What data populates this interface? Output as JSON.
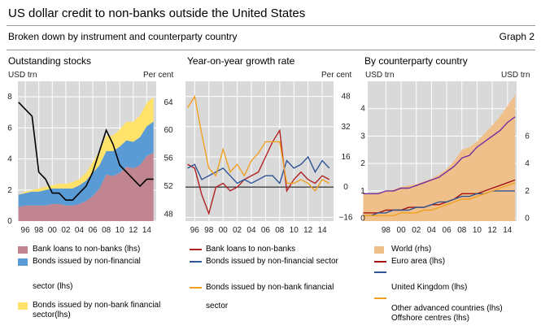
{
  "header": {
    "title": "US dollar credit to non-banks outside the United States",
    "subtitle": "Broken down by instrument and counterparty country",
    "graph_no": "Graph 2"
  },
  "panels": [
    {
      "title": "Outstanding stocks",
      "left_unit": "USD trn",
      "right_unit": "Per cent"
    },
    {
      "title": "Year-on-year growth rate",
      "left_unit": "",
      "right_unit": "Per cent"
    },
    {
      "title": "By counterparty country",
      "left_unit": "USD trn",
      "right_unit": "USD trn"
    }
  ],
  "legends": {
    "p1": [
      "Bank loans to non-banks (lhs)",
      "Bonds issued by non-financial",
      "sector (lhs)",
      "Bonds issued by non-bank financial",
      "sector(lhs)"
    ],
    "p2": [
      "Bank loans to non-banks",
      "Bonds issued by non-financial sector",
      "Bonds issued by non-bank financial",
      "sector"
    ],
    "p3": [
      "World (rhs)",
      "Euro area (lhs)",
      "United Kingdom (lhs)",
      "Other advanced countries (lhs)",
      "Offshore centres (lhs)"
    ]
  },
  "colors": {
    "bank_loans_fill": "#c08590",
    "bonds_nonfin_fill": "#5b9bd5",
    "bonds_nbfi_fill": "#ffe26a",
    "plot_bg": "#d9d9d9",
    "black_line": "#000000",
    "red_line": "#b22222",
    "blue_line": "#2f5597",
    "orange_line": "#f0a020",
    "world_fill": "#f0c08a",
    "euro_line": "#a01010",
    "uk_line": "#2f5597",
    "other_adv_line": "#f0a020",
    "offshore_line": "#7030a0"
  },
  "chart_data": [
    {
      "type": "area",
      "title": "Outstanding stocks",
      "x": [
        1995,
        1996,
        1997,
        1998,
        1999,
        2000,
        2001,
        2002,
        2003,
        2004,
        2005,
        2006,
        2007,
        2008,
        2009,
        2010,
        2011,
        2012,
        2013,
        2014,
        2015
      ],
      "xticks": [
        "96",
        "98",
        "00",
        "02",
        "04",
        "06",
        "08",
        "10",
        "12",
        "14"
      ],
      "ylim_left": [
        0,
        9
      ],
      "yticks_left": [
        0,
        2,
        4,
        6,
        8
      ],
      "ylim_right": [
        47,
        67
      ],
      "yticks_right": [
        48,
        52,
        56,
        60,
        64
      ],
      "series": [
        {
          "name": "Bank loans to non-banks (lhs)",
          "axis": "left",
          "stack": true,
          "values": [
            0.9,
            1.0,
            1.0,
            1.0,
            1.0,
            1.1,
            1.1,
            1.0,
            1.0,
            1.1,
            1.3,
            1.6,
            2.1,
            3.0,
            2.9,
            3.1,
            3.5,
            3.4,
            3.6,
            4.2,
            4.4
          ]
        },
        {
          "name": "Bonds issued by non-financial sector (lhs)",
          "axis": "left",
          "stack": true,
          "values": [
            0.8,
            0.8,
            0.9,
            0.9,
            1.0,
            1.0,
            1.0,
            1.1,
            1.1,
            1.2,
            1.3,
            1.5,
            1.5,
            1.5,
            1.6,
            1.7,
            1.7,
            1.7,
            1.8,
            1.9,
            2.0
          ]
        },
        {
          "name": "Bonds issued by non-bank financial sector(lhs)",
          "axis": "left",
          "stack": true,
          "values": [
            0.0,
            0.1,
            0.1,
            0.2,
            0.2,
            0.2,
            0.3,
            0.3,
            0.4,
            0.4,
            0.5,
            0.7,
            0.9,
            1.0,
            1.0,
            1.1,
            1.2,
            1.3,
            1.4,
            1.5,
            1.6
          ]
        },
        {
          "name": "",
          "axis": "right",
          "line": true,
          "values": [
            64,
            63,
            62,
            54,
            53,
            51,
            51,
            50,
            50,
            51,
            52,
            54,
            57,
            60,
            58,
            55,
            54,
            53,
            52,
            53,
            53
          ]
        }
      ]
    },
    {
      "type": "line",
      "title": "Year-on-year growth rate",
      "x": [
        1995,
        1996,
        1997,
        1998,
        1999,
        2000,
        2001,
        2002,
        2003,
        2004,
        2005,
        2006,
        2007,
        2008,
        2009,
        2010,
        2011,
        2012,
        2013,
        2014,
        2015
      ],
      "xticks": [
        "96",
        "98",
        "00",
        "02",
        "04",
        "06",
        "08",
        "10",
        "12",
        "14"
      ],
      "ylim": [
        -18,
        56
      ],
      "yticks": [
        -16,
        0,
        16,
        32,
        48
      ],
      "series": [
        {
          "name": "Bank loans to non-banks",
          "values": [
            12,
            10,
            -4,
            -14,
            0,
            2,
            -2,
            0,
            4,
            6,
            8,
            16,
            24,
            30,
            -2,
            4,
            8,
            4,
            2,
            6,
            4
          ]
        },
        {
          "name": "Bonds issued by non-financial sector",
          "values": [
            10,
            12,
            4,
            6,
            8,
            10,
            6,
            2,
            4,
            2,
            4,
            6,
            6,
            2,
            14,
            10,
            12,
            16,
            8,
            14,
            10
          ]
        },
        {
          "name": "Bonds issued by non-bank financial sector",
          "values": [
            42,
            48,
            28,
            10,
            6,
            20,
            8,
            12,
            6,
            14,
            18,
            24,
            24,
            24,
            2,
            2,
            4,
            2,
            -2,
            4,
            2
          ]
        }
      ]
    },
    {
      "type": "area",
      "title": "By counterparty country",
      "x": [
        1995,
        1996,
        1997,
        1998,
        1999,
        2000,
        2001,
        2002,
        2003,
        2004,
        2005,
        2006,
        2007,
        2008,
        2009,
        2010,
        2011,
        2012,
        2013,
        2014,
        2015
      ],
      "xticks": [
        "98",
        "00",
        "02",
        "04",
        "06",
        "08",
        "10",
        "12",
        "14"
      ],
      "ylim_left": [
        -0.1,
        5.0
      ],
      "yticks_left": [
        0,
        1,
        2,
        3,
        4
      ],
      "ylim_right": [
        -0.2,
        10.0
      ],
      "yticks_right": [
        0,
        2,
        4,
        6
      ],
      "series": [
        {
          "name": "World (rhs)",
          "axis": "right",
          "area": true,
          "values": [
            1.8,
            1.8,
            1.9,
            2.0,
            2.1,
            2.3,
            2.4,
            2.5,
            2.7,
            2.9,
            3.2,
            3.6,
            4.2,
            5.0,
            5.2,
            5.6,
            6.2,
            6.8,
            7.4,
            8.2,
            9.0
          ]
        },
        {
          "name": "Euro area (lhs)",
          "axis": "left",
          "values": [
            0.2,
            0.2,
            0.2,
            0.3,
            0.3,
            0.3,
            0.4,
            0.4,
            0.4,
            0.5,
            0.5,
            0.6,
            0.7,
            0.9,
            0.9,
            0.9,
            1.0,
            1.1,
            1.2,
            1.3,
            1.4
          ]
        },
        {
          "name": "United Kingdom (lhs)",
          "axis": "left",
          "values": [
            0.1,
            0.1,
            0.2,
            0.2,
            0.3,
            0.3,
            0.3,
            0.4,
            0.4,
            0.5,
            0.6,
            0.6,
            0.7,
            0.8,
            0.8,
            0.9,
            0.9,
            1.0,
            1.0,
            1.0,
            1.0
          ]
        },
        {
          "name": "Other advanced countries (lhs)",
          "axis": "left",
          "values": [
            0.1,
            0.1,
            0.1,
            0.1,
            0.1,
            0.2,
            0.2,
            0.2,
            0.3,
            0.3,
            0.4,
            0.5,
            0.6,
            0.7,
            0.7,
            0.8,
            0.9,
            1.0,
            1.1,
            1.2,
            1.3
          ]
        },
        {
          "name": "Offshore centres (lhs)",
          "axis": "left",
          "values": [
            0.9,
            0.9,
            0.9,
            1.0,
            1.0,
            1.1,
            1.1,
            1.2,
            1.3,
            1.4,
            1.5,
            1.7,
            1.9,
            2.2,
            2.3,
            2.6,
            2.8,
            3.0,
            3.2,
            3.5,
            3.7
          ]
        }
      ]
    }
  ]
}
